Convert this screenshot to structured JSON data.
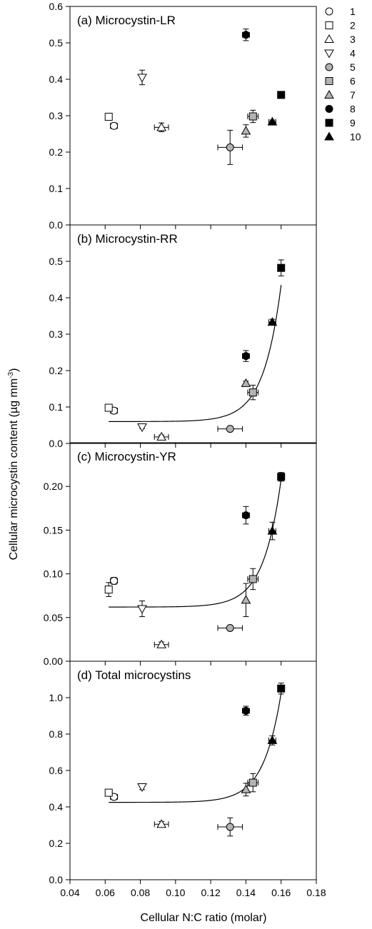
{
  "figure": {
    "ylabel": "Cellular microcystin content (µg mm",
    "ylabel_sup": "-3",
    "ylabel_close": ")",
    "xlabel": "Cellular N:C ratio (molar)"
  },
  "chart_data": [
    {
      "type": "scatter",
      "title": "(a)  Microcystin-LR",
      "xlim": [
        0.04,
        0.18
      ],
      "ylim": [
        0,
        0.6
      ],
      "yticks": [
        "0.0",
        "0.1",
        "0.2",
        "0.3",
        "0.4",
        "0.5",
        "0.6"
      ],
      "ytick_values": [
        0,
        0.1,
        0.2,
        0.3,
        0.4,
        0.5,
        0.6
      ],
      "points": [
        {
          "series": "1",
          "x": 0.065,
          "y": 0.272,
          "xerr": 0.002,
          "yerr": 0.008
        },
        {
          "series": "2",
          "x": 0.062,
          "y": 0.297,
          "xerr": 0,
          "yerr": 0.005
        },
        {
          "series": "3",
          "x": 0.092,
          "y": 0.268,
          "xerr": 0.004,
          "yerr": 0.012
        },
        {
          "series": "4",
          "x": 0.081,
          "y": 0.405,
          "xerr": 0,
          "yerr": 0.02
        },
        {
          "series": "5",
          "x": 0.131,
          "y": 0.213,
          "xerr": 0.007,
          "yerr": 0.047
        },
        {
          "series": "6",
          "x": 0.144,
          "y": 0.298,
          "xerr": 0.003,
          "yerr": 0.017
        },
        {
          "series": "7",
          "x": 0.14,
          "y": 0.258,
          "xerr": 0,
          "yerr": 0.017
        },
        {
          "series": "8",
          "x": 0.14,
          "y": 0.522,
          "xerr": 0.002,
          "yerr": 0.016
        },
        {
          "series": "9",
          "x": 0.16,
          "y": 0.357,
          "xerr": 0,
          "yerr": 0
        },
        {
          "series": "10",
          "x": 0.155,
          "y": 0.283,
          "xerr": 0.002,
          "yerr": 0.005
        }
      ]
    },
    {
      "type": "scatter",
      "title": "(b)  Microcystin-RR",
      "xlim": [
        0.04,
        0.18
      ],
      "ylim": [
        0,
        0.6
      ],
      "yticks": [
        "0.0",
        "0.1",
        "0.2",
        "0.3",
        "0.4",
        "0.5"
      ],
      "ytick_values": [
        0,
        0.1,
        0.2,
        0.3,
        0.4,
        0.5
      ],
      "fit": {
        "a": 0.06,
        "b": 0.375,
        "c": 0.16,
        "k": 100
      },
      "points": [
        {
          "series": "1",
          "x": 0.065,
          "y": 0.09,
          "xerr": 0.002,
          "yerr": 0.008
        },
        {
          "series": "2",
          "x": 0.062,
          "y": 0.098,
          "xerr": 0,
          "yerr": 0.005
        },
        {
          "series": "3",
          "x": 0.092,
          "y": 0.018,
          "xerr": 0.004,
          "yerr": 0.005
        },
        {
          "series": "4",
          "x": 0.081,
          "y": 0.045,
          "xerr": 0,
          "yerr": 0.004
        },
        {
          "series": "5",
          "x": 0.131,
          "y": 0.04,
          "xerr": 0.007,
          "yerr": 0.004
        },
        {
          "series": "6",
          "x": 0.144,
          "y": 0.14,
          "xerr": 0.003,
          "yerr": 0.02
        },
        {
          "series": "7",
          "x": 0.14,
          "y": 0.165,
          "xerr": 0,
          "yerr": 0.006
        },
        {
          "series": "8",
          "x": 0.14,
          "y": 0.24,
          "xerr": 0.002,
          "yerr": 0.015
        },
        {
          "series": "9",
          "x": 0.16,
          "y": 0.482,
          "xerr": 0,
          "yerr": 0.022
        },
        {
          "series": "10",
          "x": 0.155,
          "y": 0.333,
          "xerr": 0.002,
          "yerr": 0.008
        }
      ]
    },
    {
      "type": "scatter",
      "title": "(c)  Microcystin-YR",
      "xlim": [
        0.04,
        0.18
      ],
      "ylim": [
        0,
        0.25
      ],
      "yticks": [
        "0.00",
        "0.05",
        "0.10",
        "0.15",
        "0.20"
      ],
      "ytick_values": [
        0,
        0.05,
        0.1,
        0.15,
        0.2
      ],
      "fit": {
        "a": 0.062,
        "b": 0.146,
        "c": 0.16,
        "k": 100
      },
      "points": [
        {
          "series": "1",
          "x": 0.065,
          "y": 0.092,
          "xerr": 0.002,
          "yerr": 0.004
        },
        {
          "series": "2",
          "x": 0.062,
          "y": 0.082,
          "xerr": 0,
          "yerr": 0.008
        },
        {
          "series": "3",
          "x": 0.092,
          "y": 0.019,
          "xerr": 0.004,
          "yerr": 0.003
        },
        {
          "series": "4",
          "x": 0.081,
          "y": 0.06,
          "xerr": 0,
          "yerr": 0.009
        },
        {
          "series": "5",
          "x": 0.131,
          "y": 0.038,
          "xerr": 0.007,
          "yerr": 0.002
        },
        {
          "series": "6",
          "x": 0.144,
          "y": 0.094,
          "xerr": 0.003,
          "yerr": 0.012
        },
        {
          "series": "7",
          "x": 0.14,
          "y": 0.07,
          "xerr": 0,
          "yerr": 0.019
        },
        {
          "series": "8",
          "x": 0.14,
          "y": 0.167,
          "xerr": 0.002,
          "yerr": 0.01
        },
        {
          "series": "9",
          "x": 0.16,
          "y": 0.211,
          "xerr": 0,
          "yerr": 0.005
        },
        {
          "series": "10",
          "x": 0.155,
          "y": 0.149,
          "xerr": 0.002,
          "yerr": 0.01
        }
      ]
    },
    {
      "type": "scatter",
      "title": "(d)  Total microcystins",
      "xlim": [
        0.04,
        0.18
      ],
      "ylim": [
        0,
        1.2
      ],
      "yticks": [
        "0.0",
        "0.2",
        "0.4",
        "0.6",
        "0.8",
        "1.0"
      ],
      "ytick_values": [
        0,
        0.2,
        0.4,
        0.6,
        0.8,
        1.0
      ],
      "fit": {
        "a": 0.425,
        "b": 0.6,
        "c": 0.16,
        "k": 100
      },
      "points": [
        {
          "series": "1",
          "x": 0.065,
          "y": 0.455,
          "xerr": 0.002,
          "yerr": 0.015
        },
        {
          "series": "2",
          "x": 0.062,
          "y": 0.478,
          "xerr": 0,
          "yerr": 0.01
        },
        {
          "series": "3",
          "x": 0.092,
          "y": 0.305,
          "xerr": 0.004,
          "yerr": 0.015
        },
        {
          "series": "4",
          "x": 0.081,
          "y": 0.51,
          "xerr": 0,
          "yerr": 0.015
        },
        {
          "series": "5",
          "x": 0.131,
          "y": 0.29,
          "xerr": 0.007,
          "yerr": 0.05
        },
        {
          "series": "6",
          "x": 0.144,
          "y": 0.533,
          "xerr": 0.003,
          "yerr": 0.05
        },
        {
          "series": "7",
          "x": 0.14,
          "y": 0.495,
          "xerr": 0,
          "yerr": 0.035
        },
        {
          "series": "8",
          "x": 0.14,
          "y": 0.928,
          "xerr": 0.002,
          "yerr": 0.025
        },
        {
          "series": "9",
          "x": 0.16,
          "y": 1.05,
          "xerr": 0,
          "yerr": 0.03
        },
        {
          "series": "10",
          "x": 0.155,
          "y": 0.765,
          "xerr": 0.002,
          "yerr": 0.025
        }
      ]
    }
  ],
  "xticks": [
    "0.04",
    "0.06",
    "0.08",
    "0.10",
    "0.12",
    "0.14",
    "0.16",
    "0.18"
  ],
  "xtick_values": [
    0.04,
    0.06,
    0.08,
    0.1,
    0.12,
    0.14,
    0.16,
    0.18
  ],
  "legend": {
    "placement": "right",
    "items": [
      {
        "label": "1",
        "shape": "circle",
        "fill": "#ffffff"
      },
      {
        "label": "2",
        "shape": "square",
        "fill": "#ffffff"
      },
      {
        "label": "3",
        "shape": "triangle-up",
        "fill": "#ffffff"
      },
      {
        "label": "4",
        "shape": "triangle-down",
        "fill": "#ffffff"
      },
      {
        "label": "5",
        "shape": "circle",
        "fill": "#b3b3b3"
      },
      {
        "label": "6",
        "shape": "square",
        "fill": "#b3b3b3"
      },
      {
        "label": "7",
        "shape": "triangle-up",
        "fill": "#b3b3b3"
      },
      {
        "label": "8",
        "shape": "circle",
        "fill": "#000000"
      },
      {
        "label": "9",
        "shape": "square",
        "fill": "#000000"
      },
      {
        "label": "10",
        "shape": "triangle-up",
        "fill": "#000000"
      }
    ]
  }
}
